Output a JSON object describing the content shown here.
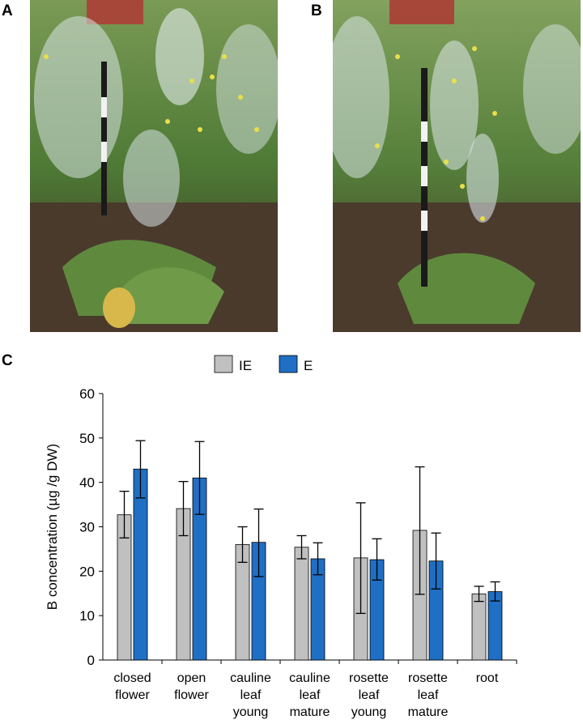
{
  "panels": {
    "a": "A",
    "b": "B",
    "c": "C"
  },
  "photos": {
    "a_description_icon": "plant-photo-icon",
    "b_description_icon": "plant-photo-icon"
  },
  "colors": {
    "IE": "#c0c0c0",
    "E": "#1f6fc4",
    "axis": "#000000"
  },
  "chart_data": {
    "type": "bar",
    "title": "",
    "xlabel": "",
    "ylabel": "B concentration (µg /g DW)",
    "ylim": [
      0,
      60
    ],
    "yticks": [
      0,
      10,
      20,
      30,
      40,
      50,
      60
    ],
    "legend_position": "top",
    "categories": [
      [
        "closed",
        "flower"
      ],
      [
        "open",
        "flower"
      ],
      [
        "cauline",
        "leaf",
        "young"
      ],
      [
        "cauline",
        "leaf",
        "mature"
      ],
      [
        "rosette",
        "leaf",
        "young"
      ],
      [
        "rosette",
        "leaf",
        "mature"
      ],
      [
        "root"
      ]
    ],
    "series": [
      {
        "name": "IE",
        "color": "#c0c0c0",
        "values": [
          32.7,
          34.1,
          26.0,
          25.4,
          23.0,
          29.2,
          14.9
        ],
        "err_low": [
          27.5,
          28.0,
          22.0,
          22.8,
          10.5,
          14.8,
          13.2
        ],
        "err_high": [
          38.0,
          40.2,
          30.0,
          28.0,
          35.4,
          43.5,
          16.6
        ]
      },
      {
        "name": "E",
        "color": "#1f6fc4",
        "values": [
          43.0,
          41.0,
          26.5,
          22.8,
          22.6,
          22.3,
          15.4
        ],
        "err_low": [
          36.5,
          32.8,
          18.8,
          19.2,
          18.0,
          16.0,
          13.3
        ],
        "err_high": [
          49.4,
          49.2,
          34.0,
          26.4,
          27.3,
          28.6,
          17.6
        ]
      }
    ]
  }
}
